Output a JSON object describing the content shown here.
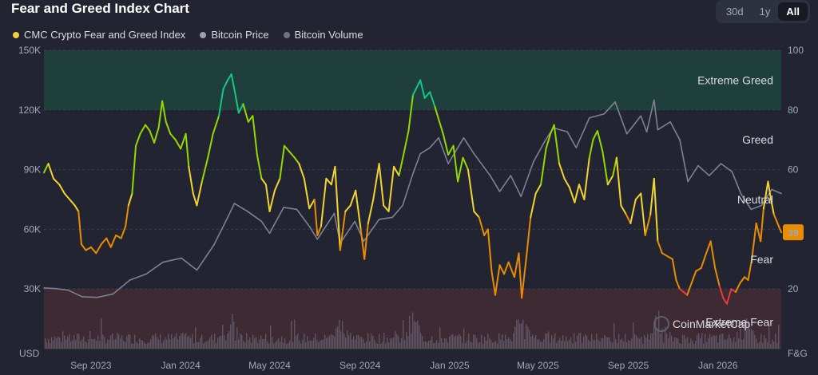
{
  "title": "Fear and Greed Index Chart",
  "range_tabs": [
    {
      "label": "30d",
      "active": false
    },
    {
      "label": "1y",
      "active": false
    },
    {
      "label": "All",
      "active": true
    }
  ],
  "legend": [
    {
      "label": "CMC Crypto Fear and Greed Index",
      "color": "#f4d03f"
    },
    {
      "label": "Bitcoin Price",
      "color": "#9aa0b3"
    },
    {
      "label": "Bitcoin Volume",
      "color": "#6e7384"
    }
  ],
  "colors": {
    "extreme_greed_zone": "#1f3f3c",
    "extreme_fear_zone": "#3d2a33",
    "extreme_greed": "#16c784",
    "greed": "#93d900",
    "neutral": "#f3d42f",
    "fear": "#ea8c00",
    "extreme_fear": "#ea3943",
    "price_line": "#7c8193",
    "volume_bars": "#5d5464",
    "badge": "#ea8c00"
  },
  "watermark": "CoinMarketCap",
  "chart_data": {
    "type": "line",
    "x_tick_labels": [
      "Sep 2023",
      "Jan 2024",
      "May 2024",
      "Sep 2024",
      "Jan 2025",
      "May 2025",
      "Sep 2025",
      "Jan 2026"
    ],
    "left_axis": {
      "unit_label": "USD",
      "tick_labels": [
        "30K",
        "60K",
        "90K",
        "120K",
        "150K"
      ],
      "ticks": [
        30000,
        60000,
        90000,
        120000,
        150000
      ],
      "range": [
        0,
        150000
      ]
    },
    "right_axis": {
      "unit_label": "F&G",
      "tick_labels": [
        "20",
        "40",
        "60",
        "80",
        "100"
      ],
      "ticks": [
        20,
        40,
        60,
        80,
        100
      ],
      "range": [
        0,
        100
      ]
    },
    "zones": [
      {
        "label": "Extreme Greed",
        "from": 80,
        "to": 100
      },
      {
        "label": "Greed",
        "value": 70
      },
      {
        "label": "Neutral",
        "value": 50
      },
      {
        "label": "Fear",
        "value": 30
      },
      {
        "label": "Extreme Fear",
        "from": 0,
        "to": 20
      }
    ],
    "current_value_label": "39",
    "current_value": 39,
    "x_range": [
      "2023-06-29",
      "2026-03-28"
    ],
    "series": [
      {
        "name": "CMC Crypto Fear and Greed Index",
        "axis": "right",
        "points": [
          [
            "2023-06-29",
            59
          ],
          [
            "2023-07-05",
            62
          ],
          [
            "2023-07-12",
            57
          ],
          [
            "2023-07-20",
            55
          ],
          [
            "2023-07-27",
            52
          ],
          [
            "2023-08-03",
            50
          ],
          [
            "2023-08-10",
            48
          ],
          [
            "2023-08-15",
            46
          ],
          [
            "2023-08-19",
            35
          ],
          [
            "2023-08-25",
            33
          ],
          [
            "2023-09-01",
            34
          ],
          [
            "2023-09-08",
            32
          ],
          [
            "2023-09-15",
            35
          ],
          [
            "2023-09-22",
            37
          ],
          [
            "2023-09-28",
            34
          ],
          [
            "2023-10-05",
            38
          ],
          [
            "2023-10-12",
            37
          ],
          [
            "2023-10-18",
            41
          ],
          [
            "2023-10-22",
            48
          ],
          [
            "2023-10-27",
            52
          ],
          [
            "2023-11-01",
            68
          ],
          [
            "2023-11-07",
            72
          ],
          [
            "2023-11-14",
            75
          ],
          [
            "2023-11-20",
            73
          ],
          [
            "2023-11-26",
            69
          ],
          [
            "2023-12-02",
            74
          ],
          [
            "2023-12-07",
            83
          ],
          [
            "2023-12-12",
            76
          ],
          [
            "2023-12-18",
            72
          ],
          [
            "2023-12-25",
            70
          ],
          [
            "2024-01-01",
            67
          ],
          [
            "2024-01-08",
            72
          ],
          [
            "2024-01-12",
            61
          ],
          [
            "2024-01-18",
            52
          ],
          [
            "2024-01-23",
            48
          ],
          [
            "2024-01-30",
            56
          ],
          [
            "2024-02-07",
            64
          ],
          [
            "2024-02-14",
            72
          ],
          [
            "2024-02-22",
            78
          ],
          [
            "2024-02-28",
            87
          ],
          [
            "2024-03-05",
            90
          ],
          [
            "2024-03-10",
            92
          ],
          [
            "2024-03-14",
            87
          ],
          [
            "2024-03-20",
            79
          ],
          [
            "2024-03-26",
            82
          ],
          [
            "2024-04-02",
            76
          ],
          [
            "2024-04-08",
            78
          ],
          [
            "2024-04-14",
            65
          ],
          [
            "2024-04-20",
            57
          ],
          [
            "2024-04-26",
            55
          ],
          [
            "2024-05-01",
            46
          ],
          [
            "2024-05-08",
            53
          ],
          [
            "2024-05-15",
            57
          ],
          [
            "2024-05-21",
            68
          ],
          [
            "2024-05-28",
            66
          ],
          [
            "2024-06-04",
            64
          ],
          [
            "2024-06-10",
            62
          ],
          [
            "2024-06-17",
            57
          ],
          [
            "2024-06-24",
            47
          ],
          [
            "2024-07-01",
            50
          ],
          [
            "2024-07-05",
            38
          ],
          [
            "2024-07-10",
            41
          ],
          [
            "2024-07-17",
            57
          ],
          [
            "2024-07-24",
            55
          ],
          [
            "2024-07-29",
            61
          ],
          [
            "2024-08-05",
            33
          ],
          [
            "2024-08-12",
            46
          ],
          [
            "2024-08-19",
            48
          ],
          [
            "2024-08-26",
            53
          ],
          [
            "2024-09-02",
            40
          ],
          [
            "2024-09-07",
            30
          ],
          [
            "2024-09-12",
            42
          ],
          [
            "2024-09-19",
            50
          ],
          [
            "2024-09-27",
            62
          ],
          [
            "2024-10-03",
            48
          ],
          [
            "2024-10-10",
            46
          ],
          [
            "2024-10-17",
            61
          ],
          [
            "2024-10-24",
            58
          ],
          [
            "2024-10-31",
            66
          ],
          [
            "2024-11-06",
            73
          ],
          [
            "2024-11-12",
            85
          ],
          [
            "2024-11-18",
            88
          ],
          [
            "2024-11-22",
            90
          ],
          [
            "2024-11-28",
            84
          ],
          [
            "2024-12-05",
            86
          ],
          [
            "2024-12-12",
            81
          ],
          [
            "2024-12-18",
            76
          ],
          [
            "2024-12-23",
            72
          ],
          [
            "2024-12-30",
            65
          ],
          [
            "2025-01-06",
            68
          ],
          [
            "2025-01-12",
            56
          ],
          [
            "2025-01-19",
            64
          ],
          [
            "2025-01-26",
            60
          ],
          [
            "2025-02-03",
            46
          ],
          [
            "2025-02-10",
            44
          ],
          [
            "2025-02-17",
            38
          ],
          [
            "2025-02-22",
            40
          ],
          [
            "2025-02-27",
            26
          ],
          [
            "2025-03-04",
            18
          ],
          [
            "2025-03-10",
            28
          ],
          [
            "2025-03-16",
            25
          ],
          [
            "2025-03-22",
            29
          ],
          [
            "2025-03-30",
            24
          ],
          [
            "2025-04-05",
            32
          ],
          [
            "2025-04-09",
            17
          ],
          [
            "2025-04-15",
            30
          ],
          [
            "2025-04-21",
            44
          ],
          [
            "2025-04-28",
            52
          ],
          [
            "2025-05-05",
            55
          ],
          [
            "2025-05-12",
            67
          ],
          [
            "2025-05-18",
            72
          ],
          [
            "2025-05-23",
            75
          ],
          [
            "2025-05-30",
            62
          ],
          [
            "2025-06-06",
            57
          ],
          [
            "2025-06-13",
            54
          ],
          [
            "2025-06-20",
            49
          ],
          [
            "2025-06-26",
            55
          ],
          [
            "2025-07-03",
            50
          ],
          [
            "2025-07-10",
            64
          ],
          [
            "2025-07-15",
            70
          ],
          [
            "2025-07-21",
            73
          ],
          [
            "2025-07-28",
            66
          ],
          [
            "2025-08-04",
            55
          ],
          [
            "2025-08-11",
            58
          ],
          [
            "2025-08-16",
            64
          ],
          [
            "2025-08-22",
            48
          ],
          [
            "2025-08-29",
            45
          ],
          [
            "2025-09-04",
            42
          ],
          [
            "2025-09-11",
            50
          ],
          [
            "2025-09-18",
            52
          ],
          [
            "2025-09-24",
            38
          ],
          [
            "2025-10-01",
            45
          ],
          [
            "2025-10-06",
            57
          ],
          [
            "2025-10-11",
            36
          ],
          [
            "2025-10-17",
            32
          ],
          [
            "2025-10-24",
            31
          ],
          [
            "2025-10-31",
            30
          ],
          [
            "2025-11-05",
            23
          ],
          [
            "2025-11-10",
            20
          ],
          [
            "2025-11-15",
            19
          ],
          [
            "2025-11-20",
            18
          ],
          [
            "2025-11-26",
            22
          ],
          [
            "2025-12-02",
            26
          ],
          [
            "2025-12-09",
            27
          ],
          [
            "2025-12-16",
            32
          ],
          [
            "2025-12-22",
            36
          ],
          [
            "2025-12-28",
            27
          ],
          [
            "2026-01-03",
            21
          ],
          [
            "2026-01-08",
            17
          ],
          [
            "2026-01-13",
            15
          ],
          [
            "2026-01-19",
            20
          ],
          [
            "2026-01-25",
            19
          ],
          [
            "2026-01-31",
            22
          ],
          [
            "2026-02-06",
            24
          ],
          [
            "2026-02-11",
            23
          ],
          [
            "2026-02-16",
            30
          ],
          [
            "2026-02-22",
            42
          ],
          [
            "2026-02-28",
            36
          ],
          [
            "2026-03-04",
            47
          ],
          [
            "2026-03-10",
            56
          ],
          [
            "2026-03-14",
            50
          ],
          [
            "2026-03-18",
            45
          ],
          [
            "2026-03-23",
            42
          ],
          [
            "2026-03-28",
            39
          ]
        ]
      },
      {
        "name": "Bitcoin Price",
        "axis": "left",
        "points": [
          [
            "2023-06-29",
            30500
          ],
          [
            "2023-07-15",
            30200
          ],
          [
            "2023-08-01",
            29400
          ],
          [
            "2023-08-20",
            26100
          ],
          [
            "2023-09-10",
            25800
          ],
          [
            "2023-10-01",
            27500
          ],
          [
            "2023-10-24",
            34500
          ],
          [
            "2023-11-15",
            37500
          ],
          [
            "2023-12-08",
            43500
          ],
          [
            "2024-01-02",
            45500
          ],
          [
            "2024-01-23",
            39500
          ],
          [
            "2024-02-15",
            52000
          ],
          [
            "2024-03-05",
            66000
          ],
          [
            "2024-03-14",
            73000
          ],
          [
            "2024-04-01",
            69000
          ],
          [
            "2024-04-20",
            64000
          ],
          [
            "2024-05-01",
            58000
          ],
          [
            "2024-05-20",
            71000
          ],
          [
            "2024-06-07",
            70000
          ],
          [
            "2024-06-25",
            61000
          ],
          [
            "2024-07-05",
            55000
          ],
          [
            "2024-07-28",
            68000
          ],
          [
            "2024-08-05",
            53000
          ],
          [
            "2024-08-25",
            64000
          ],
          [
            "2024-09-06",
            54000
          ],
          [
            "2024-09-27",
            65000
          ],
          [
            "2024-10-15",
            66000
          ],
          [
            "2024-10-29",
            72000
          ],
          [
            "2024-11-12",
            88000
          ],
          [
            "2024-11-22",
            98000
          ],
          [
            "2024-12-05",
            101000
          ],
          [
            "2024-12-17",
            106000
          ],
          [
            "2024-12-30",
            93000
          ],
          [
            "2025-01-20",
            106000
          ],
          [
            "2025-02-03",
            98000
          ],
          [
            "2025-02-25",
            87000
          ],
          [
            "2025-03-10",
            79000
          ],
          [
            "2025-03-25",
            87000
          ],
          [
            "2025-04-08",
            76500
          ],
          [
            "2025-04-25",
            94000
          ],
          [
            "2025-05-10",
            104000
          ],
          [
            "2025-05-22",
            111000
          ],
          [
            "2025-06-10",
            109000
          ],
          [
            "2025-06-22",
            101000
          ],
          [
            "2025-07-10",
            116000
          ],
          [
            "2025-07-30",
            118000
          ],
          [
            "2025-08-14",
            124000
          ],
          [
            "2025-08-30",
            108000
          ],
          [
            "2025-09-18",
            117000
          ],
          [
            "2025-09-26",
            109000
          ],
          [
            "2025-10-06",
            125000
          ],
          [
            "2025-10-11",
            110000
          ],
          [
            "2025-10-28",
            114000
          ],
          [
            "2025-11-10",
            105000
          ],
          [
            "2025-11-21",
            84000
          ],
          [
            "2025-12-05",
            92000
          ],
          [
            "2025-12-20",
            87000
          ],
          [
            "2026-01-05",
            93000
          ],
          [
            "2026-01-20",
            89000
          ],
          [
            "2026-02-01",
            78000
          ],
          [
            "2026-02-15",
            70000
          ],
          [
            "2026-03-01",
            72000
          ],
          [
            "2026-03-15",
            80000
          ],
          [
            "2026-03-28",
            78000
          ]
        ]
      },
      {
        "name": "Bitcoin Volume",
        "axis": "left",
        "summary": "Daily trading volume bars along the bottom of the plot, generally under about 10K on the USD axis scale with spikes up to roughly 30K around Mar 2024, Aug 2024, Nov 2024, Apr 2025 and Oct 2025."
      }
    ]
  }
}
